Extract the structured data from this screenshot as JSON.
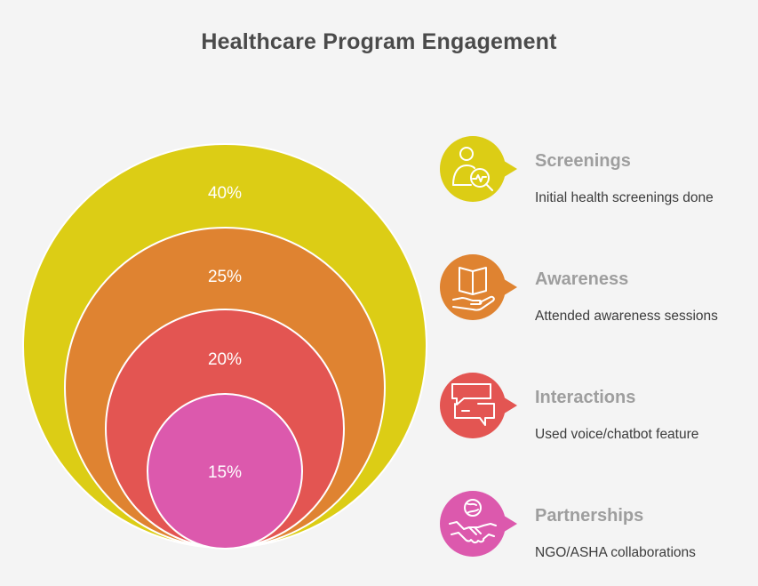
{
  "title": "Healthcare Program Engagement",
  "items": [
    {
      "name": "Screenings",
      "description": "Initial health screenings done",
      "value": "40%",
      "color": "#dccd15",
      "icon": "health-check-icon"
    },
    {
      "name": "Awareness",
      "description": "Attended awareness sessions",
      "value": "25%",
      "color": "#df8331",
      "icon": "book-in-hand-icon"
    },
    {
      "name": "Interactions",
      "description": "Used voice/chatbot feature",
      "value": "20%",
      "color": "#e35552",
      "icon": "chat-bubbles-icon"
    },
    {
      "name": "Partnerships",
      "description": "NGO/ASHA collaborations",
      "value": "15%",
      "color": "#dc59ad",
      "icon": "handshake-icon"
    }
  ]
}
